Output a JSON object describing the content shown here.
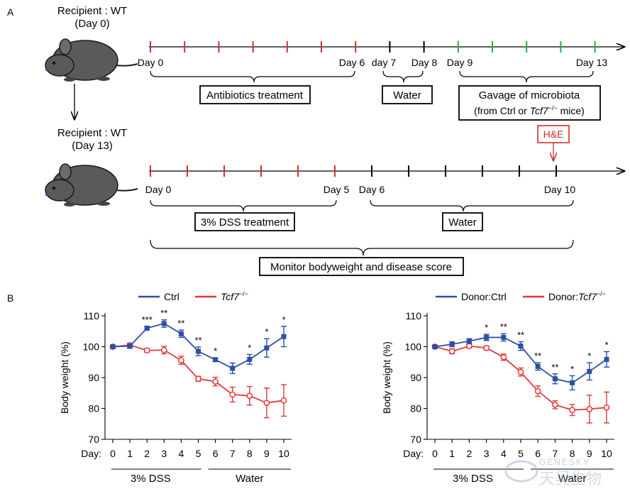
{
  "panel_labels": {
    "a": "A",
    "b": "B"
  },
  "schematic": {
    "recipient1_line1": "Recipient : WT",
    "recipient1_line2": "(Day 0)",
    "recipient2_line1": "Recipient : WT",
    "recipient2_line2": "(Day 13)",
    "timeline1": {
      "labels": [
        "Day 0",
        "Day 6",
        "day 7",
        "Day 8",
        "Day 9",
        "Day 13"
      ],
      "tick_colors": [
        "#d32f2f",
        "#d32f2f",
        "#d32f2f",
        "#d32f2f",
        "#d32f2f",
        "#d32f2f",
        "#d32f2f",
        "#000000",
        "#000000",
        "#2eaa3c",
        "#2eaa3c",
        "#2eaa3c",
        "#2eaa3c",
        "#2eaa3c"
      ],
      "box_antibiotics": "Antibiotics treatment",
      "box_water": "Water",
      "box_gavage_line1": "Gavage of microbiota",
      "box_gavage_line2_pre": "(from Ctrl or ",
      "box_gavage_line2_gene": "Tcf7",
      "box_gavage_line2_sup": "−/−",
      "box_gavage_line2_post": " mice)"
    },
    "timeline2": {
      "labels": [
        "Day 0",
        "Day 5",
        "Day 6",
        "Day 10"
      ],
      "tick_colors": [
        "#d32f2f",
        "#d32f2f",
        "#d32f2f",
        "#d32f2f",
        "#d32f2f",
        "#d32f2f",
        "#000000",
        "#000000",
        "#000000",
        "#000000",
        "#000000",
        "#000000"
      ],
      "he_label": "H&E",
      "box_dss": "3% DSS treatment",
      "box_water": "Water",
      "box_monitor": "Monitor bodyweight and disease score"
    }
  },
  "colors": {
    "ctrl": "#2a4fa8",
    "ko": "#e03a3a",
    "he": "#d32f2f"
  },
  "watermark": {
    "latin": "GENESKY",
    "cn": "天昊生物"
  },
  "chart_data": [
    {
      "type": "line",
      "ylabel": "Body weight (%)",
      "xlabel": "Day:",
      "x": [
        0,
        1,
        2,
        3,
        4,
        5,
        6,
        7,
        8,
        9,
        10
      ],
      "ylim": [
        70,
        110
      ],
      "yticks": [
        70,
        80,
        90,
        100,
        110
      ],
      "legend_position": "top",
      "series": [
        {
          "name": "Ctrl",
          "values": [
            100,
            100.2,
            106,
            107.5,
            104.2,
            98.5,
            95.8,
            93,
            95.9,
            99.6,
            103.3
          ],
          "errors": [
            0.5,
            0.7,
            0.6,
            1.2,
            1.2,
            1.4,
            0.6,
            1.7,
            1.6,
            3,
            3.3
          ]
        },
        {
          "name_gene": "Tcf7",
          "name_sup": "−/−",
          "values": [
            100,
            100.5,
            98.8,
            98.9,
            95.6,
            89.6,
            88.7,
            84.5,
            84.1,
            81.8,
            82.6
          ],
          "errors": [
            0.4,
            0.6,
            0.6,
            1.2,
            1.3,
            0.8,
            1.4,
            2.4,
            3,
            4.8,
            5.1
          ]
        }
      ],
      "significance": [
        "",
        "",
        "***",
        "**",
        "**",
        "**",
        "*",
        "",
        "*",
        "*",
        "*"
      ],
      "periods": [
        {
          "label": "3% DSS"
        },
        {
          "label": "Water"
        }
      ]
    },
    {
      "type": "line",
      "ylabel": "Body weight (%)",
      "xlabel": "Day:",
      "x": [
        0,
        1,
        2,
        3,
        4,
        5,
        6,
        7,
        8,
        9,
        10
      ],
      "ylim": [
        70,
        110
      ],
      "yticks": [
        70,
        80,
        90,
        100,
        110
      ],
      "legend_position": "top",
      "series": [
        {
          "name": "Donor:Ctrl",
          "values": [
            100,
            100.8,
            101.8,
            103,
            103,
            100.2,
            93.6,
            89.6,
            88.3,
            92,
            95.9
          ],
          "errors": [
            0.4,
            0.8,
            0.8,
            1,
            1.2,
            1.4,
            1.2,
            1.6,
            2.3,
            2.8,
            2.5
          ]
        },
        {
          "name_pre": "Donor:",
          "name_gene": "Tcf7",
          "name_sup": "−/−",
          "values": [
            100,
            98.5,
            100.2,
            99.6,
            96.6,
            91.8,
            85.6,
            81.2,
            79.5,
            79.8,
            80.3
          ],
          "errors": [
            0.4,
            0.8,
            0.6,
            0.6,
            1,
            1.3,
            1.7,
            1.3,
            1.8,
            4.5,
            5
          ]
        }
      ],
      "significance": [
        "",
        "",
        "",
        "*",
        "**",
        "**",
        "**",
        "**",
        "*",
        "*",
        "*"
      ],
      "periods": [
        {
          "label": "3% DSS"
        },
        {
          "label": "Water"
        }
      ]
    }
  ]
}
